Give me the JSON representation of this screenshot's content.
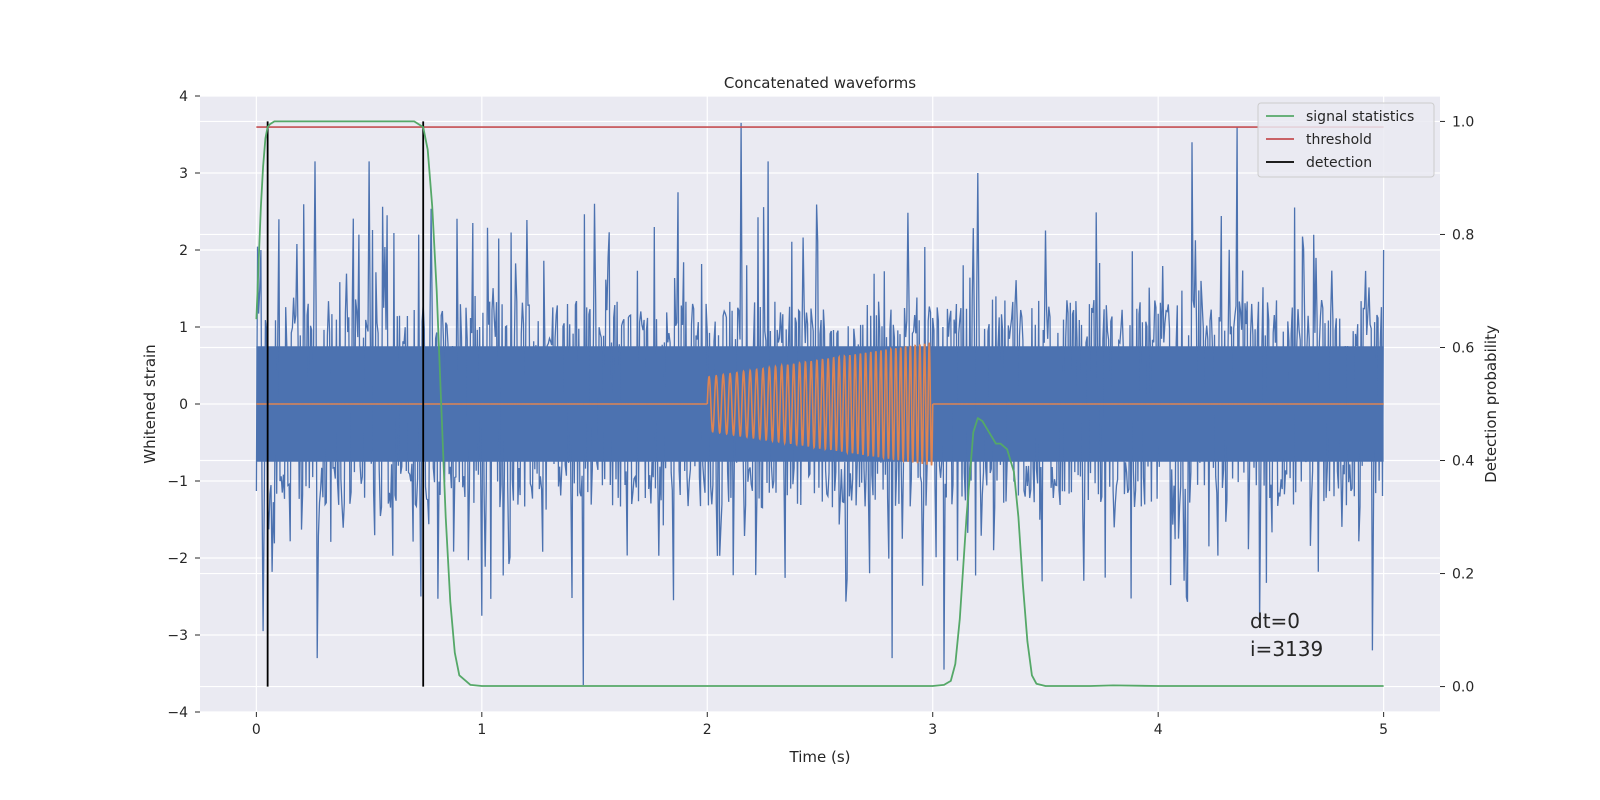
{
  "chart_data": {
    "type": "line",
    "title": "Concatenated waveforms",
    "xlabel": "Time (s)",
    "ylabel": "Whitened strain",
    "y2label": "Detection probability",
    "xlim": [
      -0.25,
      5.25
    ],
    "ylim": [
      -4,
      4
    ],
    "y2lim": [
      -0.045,
      1.045
    ],
    "x_ticks": [
      "0",
      "1",
      "2",
      "3",
      "4",
      "5"
    ],
    "y_ticks": [
      "4",
      "3",
      "2",
      "1",
      "0",
      "−1",
      "−2",
      "−3",
      "−4"
    ],
    "y2_ticks": [
      "1.0",
      "0.8",
      "0.6",
      "0.4",
      "0.2",
      "0.0"
    ],
    "grid": true,
    "legend_placement": "top-right",
    "colors": {
      "strain": "#4c72b0",
      "template": "#dd8452",
      "signal_statistics": "#55a868",
      "threshold": "#c44e52",
      "detection": "#000000",
      "background": "#eaeaf2"
    },
    "strain": {
      "x_range": [
        0,
        5
      ],
      "band": [
        -0.75,
        0.75
      ],
      "peaks": [
        [
          0.02,
          2.0
        ],
        [
          0.03,
          -2.95
        ],
        [
          0.1,
          2.4
        ],
        [
          0.26,
          3.15
        ],
        [
          0.27,
          -3.3
        ],
        [
          0.5,
          3.15
        ],
        [
          0.58,
          2.45
        ],
        [
          0.72,
          2.2
        ],
        [
          0.73,
          -2.5
        ],
        [
          1.0,
          -2.75
        ],
        [
          1.45,
          -3.65
        ],
        [
          1.5,
          2.6
        ],
        [
          1.87,
          2.75
        ],
        [
          2.15,
          3.65
        ],
        [
          2.27,
          3.15
        ],
        [
          2.82,
          -3.3
        ],
        [
          3.05,
          -3.45
        ],
        [
          3.2,
          3.0
        ],
        [
          4.15,
          3.4
        ],
        [
          4.35,
          3.6
        ],
        [
          4.45,
          -2.85
        ],
        [
          4.95,
          -3.2
        ],
        [
          5.0,
          2.0
        ]
      ]
    },
    "template": {
      "start": 2.0,
      "end": 3.0,
      "amp_start": 0.35,
      "amp_end": 0.8,
      "cycles": 40
    },
    "signal_statistics": {
      "name": "signal statistics",
      "x": [
        0,
        0.01,
        0.02,
        0.03,
        0.04,
        0.05,
        0.06,
        0.08,
        0.1,
        0.3,
        0.5,
        0.7,
        0.74,
        0.76,
        0.78,
        0.8,
        0.82,
        0.84,
        0.86,
        0.88,
        0.9,
        0.95,
        1.0,
        2.0,
        3.0,
        3.05,
        3.08,
        3.1,
        3.12,
        3.15,
        3.18,
        3.2,
        3.22,
        3.25,
        3.28,
        3.3,
        3.33,
        3.36,
        3.38,
        3.4,
        3.42,
        3.44,
        3.46,
        3.5,
        3.7,
        3.8,
        4.0,
        5.0
      ],
      "y": [
        0.65,
        0.75,
        0.85,
        0.92,
        0.97,
        0.99,
        0.995,
        1.0,
        1.0,
        1.0,
        1.0,
        1.0,
        0.99,
        0.95,
        0.85,
        0.7,
        0.5,
        0.3,
        0.15,
        0.06,
        0.02,
        0.003,
        0.001,
        0.001,
        0.001,
        0.003,
        0.01,
        0.04,
        0.12,
        0.3,
        0.45,
        0.475,
        0.47,
        0.45,
        0.43,
        0.43,
        0.42,
        0.38,
        0.3,
        0.18,
        0.08,
        0.02,
        0.005,
        0.001,
        0.001,
        0.002,
        0.001,
        0.001
      ]
    },
    "threshold": {
      "name": "threshold",
      "value": 0.99,
      "x_range": [
        0,
        5
      ]
    },
    "detection": {
      "name": "detection",
      "times": [
        0.05,
        0.74
      ],
      "ymin": 0,
      "ymax": 1.0
    },
    "annotation": {
      "line1": "dt=0",
      "line2": "i=3139",
      "x": 4.5,
      "y": -3.0
    }
  }
}
